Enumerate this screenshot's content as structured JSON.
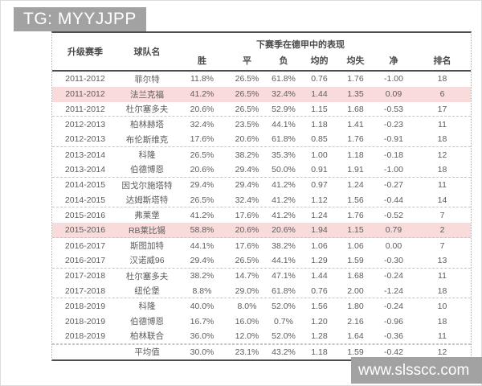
{
  "banner": {
    "text": "TG: MYYJJPP"
  },
  "watermark": {
    "text": "www.slsscc.com"
  },
  "colors": {
    "banner_bg": "#a2a2a2",
    "watermark_bg": "#a2a2a2",
    "highlight_row": "#f9dbdb",
    "header_text": "#4a4a4a",
    "body_text": "#5c5c5c",
    "border_dark": "#4e4e4e",
    "separator": "#c6c6c6"
  },
  "chart_data": {
    "type": "table",
    "title": "下赛季在德甲中的表现",
    "columns": [
      "升级赛季",
      "球队名",
      "胜",
      "平",
      "负",
      "均的",
      "均失",
      "净",
      "排名"
    ],
    "rows": [
      {
        "season": "2011-2012",
        "team": "菲尔特",
        "win": "11.8%",
        "draw": "26.5%",
        "loss": "61.8%",
        "avg_for": "0.76",
        "avg_against": "1.76",
        "net": "-1.00",
        "rank": "18",
        "highlight": false,
        "group_end": false
      },
      {
        "season": "2011-2012",
        "team": "法兰克福",
        "win": "41.2%",
        "draw": "26.5%",
        "loss": "32.4%",
        "avg_for": "1.44",
        "avg_against": "1.35",
        "net": "0.09",
        "rank": "6",
        "highlight": true,
        "group_end": false
      },
      {
        "season": "2011-2012",
        "team": "杜尔塞多夫",
        "win": "20.6%",
        "draw": "26.5%",
        "loss": "52.9%",
        "avg_for": "1.15",
        "avg_against": "1.68",
        "net": "-0.53",
        "rank": "17",
        "highlight": false,
        "group_end": true
      },
      {
        "season": "2012-2013",
        "team": "柏林赫塔",
        "win": "32.4%",
        "draw": "23.5%",
        "loss": "44.1%",
        "avg_for": "1.18",
        "avg_against": "1.41",
        "net": "-0.23",
        "rank": "11",
        "highlight": false,
        "group_end": false
      },
      {
        "season": "2012-2013",
        "team": "布伦斯维克",
        "win": "17.6%",
        "draw": "20.6%",
        "loss": "61.8%",
        "avg_for": "0.85",
        "avg_against": "1.76",
        "net": "-0.91",
        "rank": "18",
        "highlight": false,
        "group_end": true
      },
      {
        "season": "2013-2014",
        "team": "科隆",
        "win": "26.5%",
        "draw": "38.2%",
        "loss": "35.3%",
        "avg_for": "1.00",
        "avg_against": "1.18",
        "net": "-0.18",
        "rank": "12",
        "highlight": false,
        "group_end": false
      },
      {
        "season": "2013-2014",
        "team": "伯德博恩",
        "win": "20.6%",
        "draw": "29.4%",
        "loss": "50.0%",
        "avg_for": "0.91",
        "avg_against": "1.91",
        "net": "-1.00",
        "rank": "18",
        "highlight": false,
        "group_end": true
      },
      {
        "season": "2014-2015",
        "team": "因戈尔施塔特",
        "win": "29.4%",
        "draw": "29.4%",
        "loss": "41.2%",
        "avg_for": "0.97",
        "avg_against": "1.24",
        "net": "-0.27",
        "rank": "11",
        "highlight": false,
        "group_end": false
      },
      {
        "season": "2014-2015",
        "team": "达姆斯塔特",
        "win": "26.5%",
        "draw": "32.4%",
        "loss": "41.2%",
        "avg_for": "1.12",
        "avg_against": "1.56",
        "net": "-0.44",
        "rank": "14",
        "highlight": false,
        "group_end": true
      },
      {
        "season": "2015-2016",
        "team": "弗莱堡",
        "win": "41.2%",
        "draw": "17.6%",
        "loss": "41.2%",
        "avg_for": "1.24",
        "avg_against": "1.76",
        "net": "-0.52",
        "rank": "7",
        "highlight": false,
        "group_end": false
      },
      {
        "season": "2015-2016",
        "team": "RB莱比锡",
        "win": "58.8%",
        "draw": "20.6%",
        "loss": "20.6%",
        "avg_for": "1.94",
        "avg_against": "1.15",
        "net": "0.79",
        "rank": "2",
        "highlight": true,
        "group_end": true
      },
      {
        "season": "2016-2017",
        "team": "斯图加特",
        "win": "44.1%",
        "draw": "17.6%",
        "loss": "38.2%",
        "avg_for": "1.06",
        "avg_against": "1.06",
        "net": "0.00",
        "rank": "7",
        "highlight": false,
        "group_end": false
      },
      {
        "season": "2016-2017",
        "team": "汉诺威96",
        "win": "29.4%",
        "draw": "26.5%",
        "loss": "44.1%",
        "avg_for": "1.29",
        "avg_against": "1.59",
        "net": "-0.30",
        "rank": "13",
        "highlight": false,
        "group_end": true
      },
      {
        "season": "2017-2018",
        "team": "杜尔塞多夫",
        "win": "38.2%",
        "draw": "14.7%",
        "loss": "47.1%",
        "avg_for": "1.44",
        "avg_against": "1.68",
        "net": "-0.24",
        "rank": "11",
        "highlight": false,
        "group_end": false
      },
      {
        "season": "2017-2018",
        "team": "纽伦堡",
        "win": "8.8%",
        "draw": "29.0%",
        "loss": "61.8%",
        "avg_for": "0.76",
        "avg_against": "2.00",
        "net": "-1.24",
        "rank": "18",
        "highlight": false,
        "group_end": true
      },
      {
        "season": "2018-2019",
        "team": "科隆",
        "win": "40.0%",
        "draw": "8.0%",
        "loss": "52.0%",
        "avg_for": "1.56",
        "avg_against": "1.80",
        "net": "-0.24",
        "rank": "10",
        "highlight": false,
        "group_end": false
      },
      {
        "season": "2018-2019",
        "team": "伯德博恩",
        "win": "16.7%",
        "draw": "16.0%",
        "loss": "0.7%",
        "avg_for": "1.20",
        "avg_against": "2.16",
        "net": "-0.96",
        "rank": "18",
        "highlight": false,
        "group_end": false
      },
      {
        "season": "2018-2019",
        "team": "柏林联合",
        "win": "36.0%",
        "draw": "12.0%",
        "loss": "52.0%",
        "avg_for": "1.28",
        "avg_against": "1.64",
        "net": "-0.36",
        "rank": "11",
        "highlight": false,
        "group_end": true
      }
    ],
    "average_row": {
      "season": "",
      "team": "平均值",
      "win": "30.0%",
      "draw": "23.1%",
      "loss": "43.2%",
      "avg_for": "1.18",
      "avg_against": "1.59",
      "net": "-0.42",
      "rank": "12"
    }
  }
}
